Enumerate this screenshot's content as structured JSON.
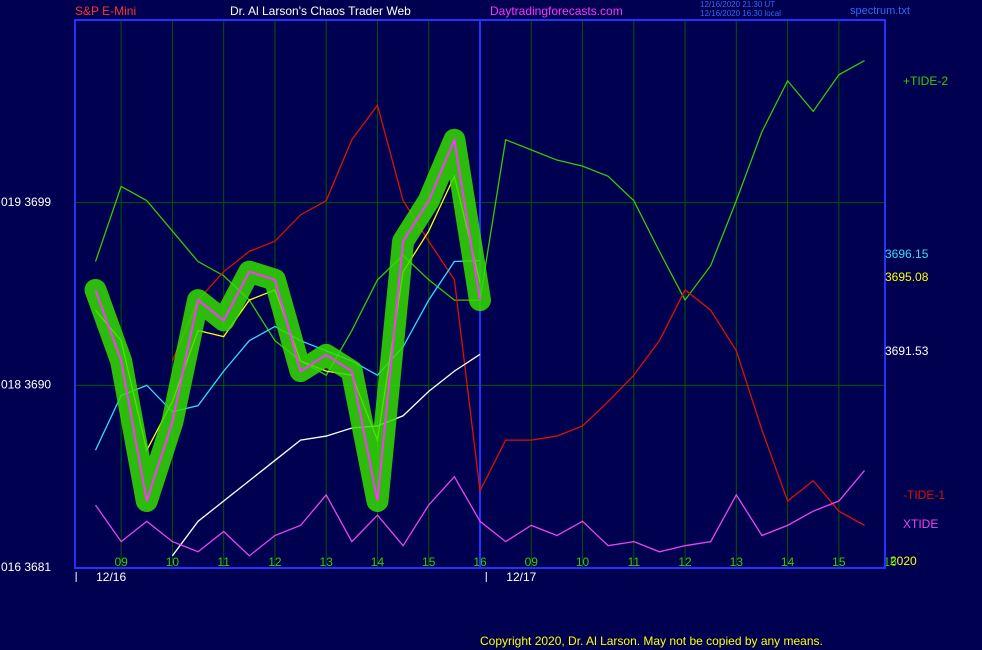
{
  "chart_data": {
    "type": "line",
    "header": {
      "left": "S&P E-Mini",
      "center": "Dr. Al Larson's Chaos Trader Web",
      "site": "Daytradingforecasts.com",
      "stamp1": "12/16/2020 21:30 UT",
      "stamp2": "12/16/2020 16:30 local",
      "file": "spectrum.txt"
    },
    "footer": "Copyright 2020, Dr. Al Larson. May not be copied by any means.",
    "year_label": "2020",
    "x": [
      0.5,
      1,
      1.5,
      2,
      2.5,
      3,
      3.5,
      4,
      4.5,
      5,
      5.5,
      6,
      6.5,
      7,
      7.5,
      8,
      8.5,
      9,
      9.5,
      10,
      10.5,
      11,
      11.5,
      12,
      12.5,
      13,
      13.5,
      14,
      14.5,
      15,
      15.5
    ],
    "xlim": [
      0.1,
      15.9
    ],
    "ylim": [
      3681,
      3708
    ],
    "xticks": [
      {
        "value": 1,
        "label": "09"
      },
      {
        "value": 2,
        "label": "10"
      },
      {
        "value": 3,
        "label": "11"
      },
      {
        "value": 4,
        "label": "12"
      },
      {
        "value": 5,
        "label": "13"
      },
      {
        "value": 6,
        "label": "14"
      },
      {
        "value": 7,
        "label": "15"
      },
      {
        "value": 8,
        "label": "16"
      },
      {
        "value": 9,
        "label": "09"
      },
      {
        "value": 10,
        "label": "10"
      },
      {
        "value": 11,
        "label": "11"
      },
      {
        "value": 12,
        "label": "12"
      },
      {
        "value": 13,
        "label": "13"
      },
      {
        "value": 14,
        "label": "14"
      },
      {
        "value": 15,
        "label": "15"
      },
      {
        "value": 16,
        "label": "16"
      }
    ],
    "yticks": [
      {
        "value": 3681,
        "label": "016  3681"
      },
      {
        "value": 3690,
        "label": "018  3690"
      },
      {
        "value": 3699,
        "label": "019  3699"
      }
    ],
    "date_labels": [
      {
        "value": 1,
        "label": "12/16"
      },
      {
        "value": 9,
        "label": "12/17"
      }
    ],
    "divider": 8,
    "grid": true,
    "series": [
      {
        "name": "+TIDE-2",
        "color": "#33cc00",
        "values": [
          3696.1,
          3699.8,
          3699.1,
          3697.6,
          3696.1,
          3695.4,
          3694.2,
          3692.2,
          3691.2,
          3690.5,
          3692.7,
          3695.2,
          3696.4,
          3695.2,
          3694.2,
          3694.2,
          3702.1,
          3701.6,
          3701.1,
          3700.8,
          3700.3,
          3699.1,
          3696.6,
          3694.2,
          3695.9,
          3699.1,
          3702.5,
          3705,
          3703.5,
          3705.3,
          3706
        ]
      },
      {
        "name": "-TIDE-1",
        "color": "#dd1100",
        "values": [
          null,
          null,
          null,
          3691.2,
          3694.2,
          3695.6,
          3696.6,
          3697.1,
          3698.4,
          3699.1,
          3702.1,
          3703.8,
          3699.1,
          3697.1,
          3695.2,
          3684.8,
          3687.3,
          3687.3,
          3687.5,
          3688,
          3689.2,
          3690.5,
          3692.2,
          3694.7,
          3693.7,
          3691.7,
          3687.8,
          3684.3,
          3685.3,
          3683.8,
          3683.1
        ]
      },
      {
        "color": "#ffff00",
        "values": [
          3693.7,
          3692.2,
          3686.8,
          3689.2,
          3692.7,
          3692.4,
          3694.2,
          3694.7,
          3691.2,
          3690.7,
          3690.5,
          3687.3,
          3695.6,
          3697.6,
          3700.3,
          3695.08,
          null,
          null,
          null,
          null,
          null,
          null,
          null,
          null,
          null,
          null,
          null,
          null,
          null,
          null,
          null
        ]
      },
      {
        "color": "#33ddff",
        "values": [
          3686.8,
          3689.5,
          3690,
          3688.7,
          3689,
          3690.7,
          3692.2,
          3692.9,
          3692.2,
          3691.7,
          3691.2,
          3690.5,
          3691.9,
          3694.2,
          3696.1,
          3696.15,
          null,
          null,
          null,
          null,
          null,
          null,
          null,
          null,
          null,
          null,
          null,
          null,
          null,
          null,
          null
        ]
      },
      {
        "color": "#ffffff",
        "values": [
          null,
          null,
          null,
          3681.6,
          3683.3,
          3684.3,
          3685.3,
          3686.3,
          3687.3,
          3687.5,
          3687.9,
          3688,
          3688.5,
          3689.7,
          3690.7,
          3691.53,
          null,
          null,
          null,
          null,
          null,
          null,
          null,
          null,
          null,
          null,
          null,
          null,
          null,
          null,
          null
        ]
      },
      {
        "color": "#ff33ff",
        "glow": "#33dd00",
        "values": [
          3694.7,
          3691.2,
          3684.3,
          3688.2,
          3694.2,
          3693.2,
          3695.6,
          3695.2,
          3690.7,
          3691.5,
          3690.7,
          3684.3,
          3697.1,
          3699.1,
          3702.1,
          3694.2,
          null,
          null,
          null,
          null,
          null,
          null,
          null,
          null,
          null,
          null,
          null,
          null,
          null,
          null,
          null
        ]
      },
      {
        "name": "XTIDE",
        "color": "#ee44ee",
        "values": [
          3684.1,
          3682.3,
          3683.3,
          3682.3,
          3681.8,
          3682.8,
          3681.6,
          3682.6,
          3683.1,
          3684.6,
          3682.3,
          3683.6,
          3682.1,
          3684.1,
          3685.5,
          3683.3,
          3682.3,
          3683.1,
          3682.6,
          3683.3,
          3682.1,
          3682.3,
          3681.8,
          3682.1,
          3682.3,
          3684.6,
          3682.6,
          3683.1,
          3683.8,
          3684.3,
          3685.8
        ]
      }
    ]
  }
}
